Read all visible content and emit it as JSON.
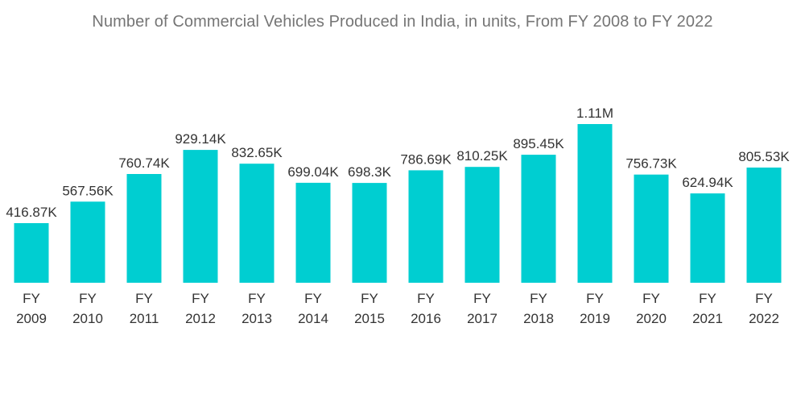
{
  "chart_data": {
    "type": "bar",
    "title": "Number of Commercial Vehicles Produced in India, in units, From FY 2008 to FY 2022",
    "xlabel": "",
    "ylabel": "",
    "categories": [
      "FY 2009",
      "FY 2010",
      "FY 2011",
      "FY 2012",
      "FY 2013",
      "FY 2014",
      "FY 2015",
      "FY 2016",
      "FY 2017",
      "FY 2018",
      "FY 2019",
      "FY 2020",
      "FY 2021",
      "FY 2022"
    ],
    "values": [
      416870,
      567560,
      760740,
      929140,
      832650,
      699040,
      698300,
      786690,
      810250,
      895450,
      1110000,
      756730,
      624940,
      805530
    ],
    "value_labels": [
      "416.87K",
      "567.56K",
      "760.74K",
      "929.14K",
      "832.65K",
      "699.04K",
      "698.3K",
      "786.69K",
      "810.25K",
      "895.45K",
      "1.11M",
      "756.73K",
      "624.94K",
      "805.53K"
    ],
    "ylim": [
      0,
      1110000
    ],
    "grid": false,
    "legend": "none",
    "colors": {
      "bar": "#00CED1",
      "title": "#757575",
      "label": "#333333"
    }
  }
}
